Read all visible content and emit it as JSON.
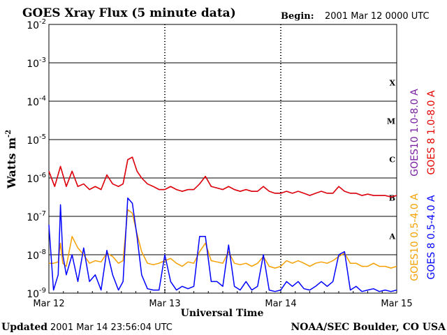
{
  "chart_data": {
    "type": "line",
    "title": "GOES Xray Flux (5 minute data)",
    "begin_label": "Begin:",
    "begin_value": "2001 Mar 12 0000 UTC",
    "xlabel": "Universal Time",
    "ylabel": "Watts m",
    "ylabel_exp": "-2",
    "x_ticks": [
      "Mar 12",
      "Mar 13",
      "Mar 14",
      "Mar 15"
    ],
    "xlim": [
      0,
      3
    ],
    "y_scale": "log",
    "ylim": [
      1e-09,
      0.01
    ],
    "y_ticks": [
      {
        "base": "10",
        "exp": "-9"
      },
      {
        "base": "10",
        "exp": "-8"
      },
      {
        "base": "10",
        "exp": "-7"
      },
      {
        "base": "10",
        "exp": "-6"
      },
      {
        "base": "10",
        "exp": "-5"
      },
      {
        "base": "10",
        "exp": "-4"
      },
      {
        "base": "10",
        "exp": "-3"
      },
      {
        "base": "10",
        "exp": "-2"
      }
    ],
    "flare_classes": [
      "A",
      "B",
      "C",
      "M",
      "X"
    ],
    "series": [
      {
        "name": "GOES10 0.5-4.0 A",
        "color": "#f5a000",
        "x": [
          0,
          0.04,
          0.08,
          0.1,
          0.12,
          0.15,
          0.2,
          0.25,
          0.3,
          0.35,
          0.4,
          0.45,
          0.5,
          0.55,
          0.6,
          0.64,
          0.68,
          0.72,
          0.76,
          0.8,
          0.85,
          0.9,
          0.95,
          1.0,
          1.05,
          1.1,
          1.15,
          1.2,
          1.25,
          1.3,
          1.35,
          1.4,
          1.45,
          1.5,
          1.55,
          1.6,
          1.65,
          1.7,
          1.75,
          1.8,
          1.85,
          1.9,
          1.95,
          2.0,
          2.05,
          2.1,
          2.15,
          2.2,
          2.25,
          2.3,
          2.35,
          2.4,
          2.45,
          2.5,
          2.55,
          2.6,
          2.65,
          2.7,
          2.75,
          2.8,
          2.85,
          2.9,
          2.95,
          3.0
        ],
        "y": [
          6e-09,
          6e-09,
          6.5e-09,
          2e-08,
          6e-09,
          5e-09,
          3e-08,
          1.5e-08,
          1e-08,
          6e-09,
          7e-09,
          6.5e-09,
          1.1e-08,
          9e-09,
          6e-09,
          7e-09,
          1.5e-07,
          1.2e-07,
          3.5e-08,
          1.2e-08,
          6e-09,
          5.5e-09,
          6e-09,
          7e-09,
          8e-09,
          6e-09,
          5e-09,
          6.5e-09,
          6e-09,
          1.2e-08,
          2e-08,
          7e-09,
          6.5e-09,
          6e-09,
          1.2e-08,
          6e-09,
          5.5e-09,
          6e-09,
          5e-09,
          6e-09,
          9e-09,
          5e-09,
          4.5e-09,
          5e-09,
          7e-09,
          6e-09,
          7e-09,
          6e-09,
          5e-09,
          6e-09,
          6.5e-09,
          6e-09,
          7e-09,
          9e-09,
          1.1e-08,
          6e-09,
          6e-09,
          5e-09,
          5e-09,
          6e-09,
          5e-09,
          5e-09,
          4.5e-09,
          5e-09
        ]
      },
      {
        "name": "GOES 8 0.5-4.0 A",
        "color": "#0000ff",
        "x": [
          0,
          0.04,
          0.08,
          0.1,
          0.12,
          0.15,
          0.2,
          0.25,
          0.3,
          0.35,
          0.4,
          0.45,
          0.5,
          0.55,
          0.6,
          0.64,
          0.68,
          0.72,
          0.76,
          0.8,
          0.85,
          0.9,
          0.95,
          1.0,
          1.05,
          1.1,
          1.15,
          1.2,
          1.25,
          1.3,
          1.35,
          1.4,
          1.45,
          1.5,
          1.55,
          1.6,
          1.65,
          1.7,
          1.75,
          1.8,
          1.85,
          1.9,
          1.95,
          2.0,
          2.05,
          2.1,
          2.15,
          2.2,
          2.25,
          2.3,
          2.35,
          2.4,
          2.45,
          2.5,
          2.55,
          2.6,
          2.65,
          2.7,
          2.75,
          2.8,
          2.85,
          2.9,
          2.95,
          3.0
        ],
        "y": [
          6e-08,
          1.2e-09,
          3e-09,
          2e-07,
          1e-08,
          3e-09,
          1e-08,
          2e-09,
          1.5e-08,
          2e-09,
          3e-09,
          1.2e-09,
          1.3e-08,
          3e-09,
          1.2e-09,
          2e-09,
          3e-07,
          2.2e-07,
          3e-08,
          3e-09,
          1.3e-09,
          1.2e-09,
          1.2e-09,
          1e-08,
          2e-09,
          1.2e-09,
          1.5e-09,
          1.3e-09,
          1.5e-09,
          3e-08,
          3e-08,
          2e-09,
          2e-09,
          1.5e-09,
          1.8e-08,
          1.5e-09,
          1.2e-09,
          2e-09,
          1.2e-09,
          1.5e-09,
          1e-08,
          1.2e-09,
          1.1e-09,
          1.2e-09,
          2e-09,
          1.5e-09,
          2e-09,
          1.3e-09,
          1.2e-09,
          1.5e-09,
          2e-09,
          1.5e-09,
          2e-09,
          1e-08,
          1.2e-08,
          1.2e-09,
          1.5e-09,
          1.1e-09,
          1.2e-09,
          1.3e-09,
          1.1e-09,
          1.2e-09,
          1.1e-09,
          1.2e-09
        ]
      },
      {
        "name": "GOES10 1.0-8.0 A",
        "color": "#7a1fa2",
        "x": [
          0,
          0.05,
          0.1,
          0.15,
          0.2,
          0.25,
          0.3,
          0.35,
          0.4,
          0.45,
          0.5,
          0.55,
          0.6,
          0.64,
          0.68,
          0.72,
          0.76,
          0.8,
          0.85,
          0.9,
          0.95,
          1.0,
          1.05,
          1.1,
          1.15,
          1.2,
          1.25,
          1.3,
          1.35,
          1.4,
          1.45,
          1.5,
          1.55,
          1.6,
          1.65,
          1.7,
          1.75,
          1.8,
          1.85,
          1.9,
          1.95,
          2.0,
          2.05,
          2.1,
          2.15,
          2.2,
          2.25,
          2.3,
          2.35,
          2.4,
          2.45,
          2.5,
          2.55,
          2.6,
          2.65,
          2.7,
          2.75,
          2.8,
          2.85,
          2.9,
          2.95,
          3.0
        ],
        "y": [
          1.5e-06,
          6e-07,
          2e-06,
          6e-07,
          1.5e-06,
          6e-07,
          7e-07,
          5e-07,
          6e-07,
          5e-07,
          1.2e-06,
          7e-07,
          6e-07,
          7e-07,
          3e-06,
          3.5e-06,
          1.5e-06,
          1e-06,
          7e-07,
          6e-07,
          5e-07,
          5e-07,
          6e-07,
          5e-07,
          4.5e-07,
          5e-07,
          5e-07,
          7e-07,
          1.1e-06,
          6e-07,
          5.5e-07,
          5e-07,
          6e-07,
          5e-07,
          4.5e-07,
          5e-07,
          4.5e-07,
          4.5e-07,
          6e-07,
          4.5e-07,
          4e-07,
          4e-07,
          4.5e-07,
          4e-07,
          4.5e-07,
          4e-07,
          3.5e-07,
          4e-07,
          4.5e-07,
          4e-07,
          4e-07,
          6e-07,
          4.5e-07,
          4e-07,
          4e-07,
          3.5e-07,
          3.8e-07,
          3.5e-07,
          3.5e-07,
          3.5e-07,
          3.2e-07,
          3.5e-07
        ]
      },
      {
        "name": "GOES 8 1.0-8.0 A",
        "color": "#e60000",
        "x": [
          0,
          0.05,
          0.1,
          0.15,
          0.2,
          0.25,
          0.3,
          0.35,
          0.4,
          0.45,
          0.5,
          0.55,
          0.6,
          0.64,
          0.68,
          0.72,
          0.76,
          0.8,
          0.85,
          0.9,
          0.95,
          1.0,
          1.05,
          1.1,
          1.15,
          1.2,
          1.25,
          1.3,
          1.35,
          1.4,
          1.45,
          1.5,
          1.55,
          1.6,
          1.65,
          1.7,
          1.75,
          1.8,
          1.85,
          1.9,
          1.95,
          2.0,
          2.05,
          2.1,
          2.15,
          2.2,
          2.25,
          2.3,
          2.35,
          2.4,
          2.45,
          2.5,
          2.55,
          2.6,
          2.65,
          2.7,
          2.75,
          2.8,
          2.85,
          2.9,
          2.95,
          3.0
        ],
        "y": [
          1.5e-06,
          6e-07,
          2e-06,
          6e-07,
          1.5e-06,
          6e-07,
          7e-07,
          5e-07,
          6e-07,
          5e-07,
          1.2e-06,
          7e-07,
          6e-07,
          7e-07,
          3e-06,
          3.5e-06,
          1.5e-06,
          1e-06,
          7e-07,
          6e-07,
          5e-07,
          5e-07,
          6e-07,
          5e-07,
          4.5e-07,
          5e-07,
          5e-07,
          7e-07,
          1.1e-06,
          6e-07,
          5.5e-07,
          5e-07,
          6e-07,
          5e-07,
          4.5e-07,
          5e-07,
          4.5e-07,
          4.5e-07,
          6e-07,
          4.5e-07,
          4e-07,
          4e-07,
          4.5e-07,
          4e-07,
          4.5e-07,
          4e-07,
          3.5e-07,
          4e-07,
          4.5e-07,
          4e-07,
          4e-07,
          6e-07,
          4.5e-07,
          4e-07,
          4e-07,
          3.5e-07,
          3.8e-07,
          3.5e-07,
          3.5e-07,
          3.5e-07,
          3.2e-07,
          3.5e-07
        ]
      }
    ],
    "legend_placement": "right"
  },
  "footer": {
    "updated_label": "Updated",
    "updated_value": "2001 Mar 14 23:56:04 UTC",
    "credit": "NOAA/SEC Boulder, CO USA"
  }
}
